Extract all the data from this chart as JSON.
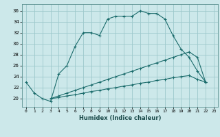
{
  "xlabel": "Humidex (Indice chaleur)",
  "ylabel": "",
  "xlim": [
    -0.5,
    23.5
  ],
  "ylim": [
    18.5,
    37.2
  ],
  "yticks": [
    20,
    22,
    24,
    26,
    28,
    30,
    32,
    34,
    36
  ],
  "xticks": [
    0,
    1,
    2,
    3,
    4,
    5,
    6,
    7,
    8,
    9,
    10,
    11,
    12,
    13,
    14,
    15,
    16,
    17,
    18,
    19,
    20,
    21,
    22,
    23
  ],
  "bg_color": "#cce8ea",
  "grid_color": "#9dc8cc",
  "line_color": "#1a6b6b",
  "curve1_x": [
    0,
    1,
    2,
    3,
    4,
    5,
    6,
    7,
    8,
    9,
    10,
    11,
    12,
    13,
    14,
    15,
    16,
    17,
    18,
    19,
    20,
    21,
    22
  ],
  "curve1_y": [
    23,
    21,
    20,
    19.5,
    24.5,
    26,
    29.5,
    32,
    32,
    31.5,
    34.5,
    35,
    35,
    35,
    36,
    35.5,
    35.5,
    34.5,
    31.5,
    29,
    27.5,
    25,
    23
  ],
  "curve2_x": [
    3,
    4,
    5,
    6,
    7,
    8,
    9,
    10,
    11,
    12,
    13,
    14,
    15,
    16,
    17,
    18,
    19,
    20,
    21,
    22
  ],
  "curve2_y": [
    20,
    20.5,
    21,
    21.5,
    22,
    22.5,
    23,
    23.5,
    24,
    24.5,
    25,
    25.5,
    26,
    26.5,
    27,
    27.5,
    28,
    28.5,
    27.5,
    23
  ],
  "curve3_x": [
    3,
    4,
    5,
    6,
    7,
    8,
    9,
    10,
    11,
    12,
    13,
    14,
    15,
    16,
    17,
    18,
    19,
    20,
    21,
    22
  ],
  "curve3_y": [
    20,
    20.2,
    20.5,
    20.7,
    21.0,
    21.3,
    21.5,
    21.8,
    22.0,
    22.3,
    22.5,
    22.8,
    23.0,
    23.3,
    23.5,
    23.8,
    24.0,
    24.2,
    23.5,
    23.0
  ]
}
